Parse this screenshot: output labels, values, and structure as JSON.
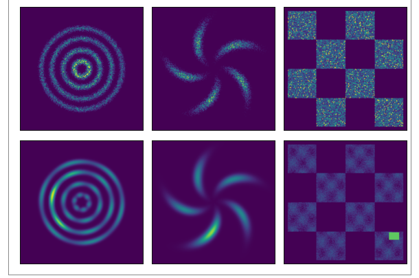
{
  "figure": {
    "colormap": "viridis",
    "background_color": "#440154",
    "frame_color": "#8a8a8a"
  },
  "chart_data": [
    {
      "type": "heatmap",
      "dataset": "concentric-rings",
      "row": "top",
      "col": 1,
      "style": "samples",
      "rings": [
        0.13,
        0.32,
        0.52,
        0.7
      ],
      "ring_weights": [
        1.0,
        0.7,
        0.55,
        0.45
      ],
      "ring_width": 0.03
    },
    {
      "type": "heatmap",
      "dataset": "pinwheel",
      "row": "top",
      "col": 2,
      "style": "samples",
      "arms": 5,
      "radial_mean": 0.52,
      "radial_std": 0.17,
      "tangential_std": 0.045,
      "twist": 1.2
    },
    {
      "type": "heatmap",
      "dataset": "checkerboard",
      "row": "top",
      "col": 3,
      "style": "samples",
      "grid": 4,
      "grain": "noisy"
    },
    {
      "type": "heatmap",
      "dataset": "concentric-rings",
      "row": "bottom",
      "col": 1,
      "style": "density",
      "rings": [
        0.13,
        0.32,
        0.52,
        0.7
      ],
      "ring_weights": [
        0.45,
        0.55,
        0.6,
        0.55
      ],
      "ring_width": 0.028
    },
    {
      "type": "heatmap",
      "dataset": "pinwheel",
      "row": "bottom",
      "col": 2,
      "style": "density",
      "arms": 5,
      "radial_mean": 0.52,
      "radial_std": 0.17,
      "tangential_std": 0.05,
      "twist": 1.2
    },
    {
      "type": "heatmap",
      "dataset": "checkerboard",
      "row": "bottom",
      "col": 3,
      "style": "density",
      "grid": 4,
      "grain": "smooth"
    }
  ]
}
